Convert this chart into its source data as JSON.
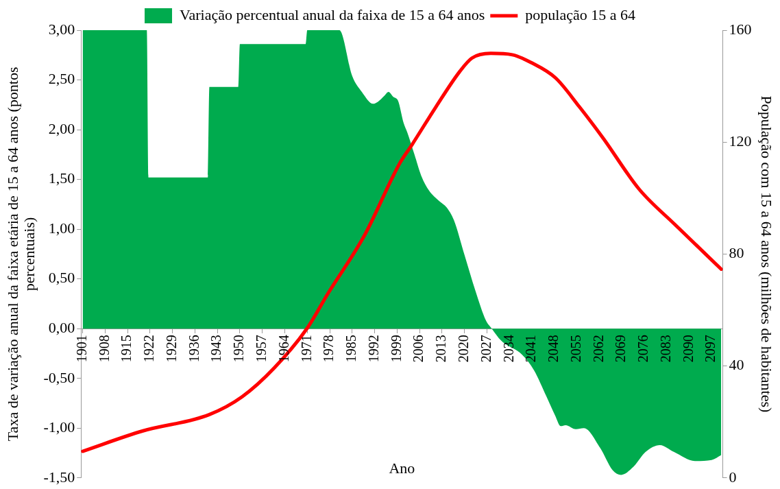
{
  "chart_data": {
    "type": "area",
    "xlabel": "Ano",
    "ylabel": "Taxa de variação anual da faixa etária de 15 a 64 anos (pontos percentuais)",
    "y2label": "População com 15 a 64 anos (milhões de habitantes)",
    "xlim": [
      1900.5,
      2100.5
    ],
    "xticks": [
      1901,
      1908,
      1915,
      1922,
      1929,
      1936,
      1943,
      1950,
      1957,
      1964,
      1971,
      1978,
      1985,
      1992,
      1999,
      2006,
      2013,
      2020,
      2027,
      2034,
      2041,
      2048,
      2055,
      2062,
      2069,
      2076,
      2083,
      2090,
      2097
    ],
    "ylim": [
      -1.5,
      3
    ],
    "yticks": [
      {
        "value": -1.5,
        "label": "-1,50"
      },
      {
        "value": -1,
        "label": "-1,00"
      },
      {
        "value": -0.5,
        "label": "-0,50"
      },
      {
        "value": 0,
        "label": "0,00"
      },
      {
        "value": 0.5,
        "label": "0,50"
      },
      {
        "value": 1,
        "label": "1,00"
      },
      {
        "value": 1.5,
        "label": "1,50"
      },
      {
        "value": 2,
        "label": "2,00"
      },
      {
        "value": 2.5,
        "label": "2,50"
      },
      {
        "value": 3,
        "label": "3,00"
      }
    ],
    "y2lim": [
      0,
      160
    ],
    "y2ticks": [
      0,
      40,
      80,
      120,
      160
    ],
    "grid": false,
    "legend": "top",
    "marker": "none",
    "series": [
      {
        "name": "Variação percentual anual da faixa de 15 a 64 anos",
        "color": "#00ab4e",
        "x": [
          1901,
          1921,
          1921.5,
          1940,
          1940.5,
          1949.5,
          1950,
          1970.5,
          1971,
          1981,
          1985,
          1988,
          1991.5,
          1993,
          1995,
          1996.3,
          1997.8,
          1999.3,
          2001,
          2002.2,
          2004.4,
          2006.6,
          2008.9,
          2012.2,
          2014.4,
          2016.7,
          2020,
          2023.4,
          2026.7,
          2028.5,
          2031.4,
          2037.9,
          2041.7,
          2045.5,
          2048.2,
          2050,
          2051.5,
          2054.7,
          2057.2,
          2062.3,
          2066.1,
          2068.8,
          2072.6,
          2076.4,
          2080.9,
          2085.3,
          2091.8,
          2097,
          2100
        ],
        "values": [
          3,
          3,
          1.52,
          1.52,
          2.43,
          2.43,
          2.86,
          2.86,
          3,
          3,
          2.54,
          2.38,
          2.26,
          2.28,
          2.34,
          2.38,
          2.33,
          2.29,
          2.07,
          1.97,
          1.75,
          1.53,
          1.39,
          1.28,
          1.22,
          1.09,
          0.74,
          0.38,
          0.08,
          0,
          -0.12,
          -0.26,
          -0.42,
          -0.68,
          -0.87,
          -0.98,
          -0.97,
          -1.01,
          -1,
          -1.2,
          -1.42,
          -1.47,
          -1.39,
          -1.24,
          -1.17,
          -1.24,
          -1.33,
          -1.32,
          -1.27
        ]
      },
      {
        "name": "população 15 a 64",
        "type": "line",
        "axis": "y2",
        "color": "#ff0000",
        "x": [
          1901,
          1919.8,
          1940.4,
          1950.7,
          1960.8,
          1971.1,
          1977.5,
          1988.7,
          1999.9,
          2003.6,
          2011.1,
          2018.5,
          2022.3,
          2028.2,
          2034.9,
          2040.8,
          2048.4,
          2055.8,
          2063.2,
          2074.4,
          2085.6,
          2100
        ],
        "values": [
          9.5,
          16.8,
          22.6,
          29,
          39.4,
          53.7,
          66,
          86.4,
          112.6,
          119,
          132.6,
          145.2,
          150,
          151.7,
          151.2,
          148.4,
          142.9,
          132.6,
          121.4,
          103.2,
          90.5,
          74.6
        ]
      }
    ]
  }
}
